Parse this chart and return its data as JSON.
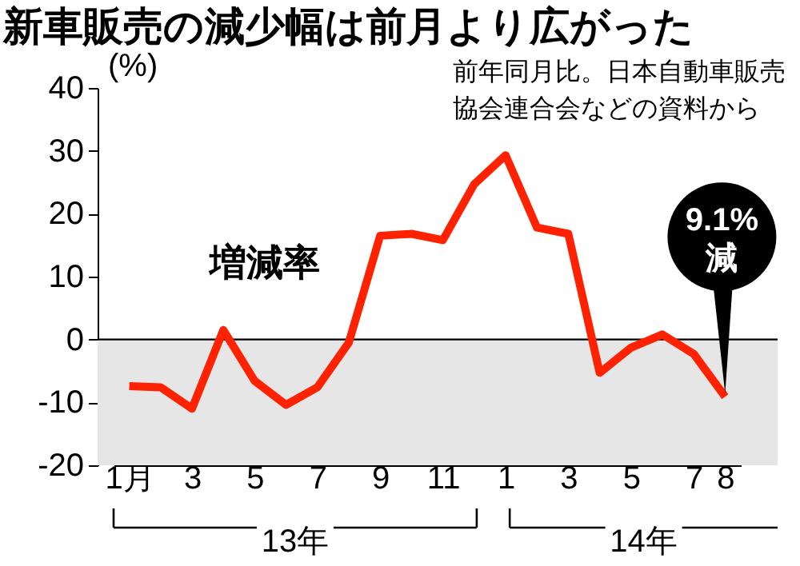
{
  "chart_data": {
    "type": "line",
    "title": "新車販売の減少幅は前月より広がった",
    "subtitle": "前年同月比。日本自動車販売協会連合会などの資料から",
    "ylabel": "(%)",
    "categories": [
      "1月",
      null,
      "3",
      null,
      "5",
      null,
      "7",
      null,
      "9",
      null,
      "11",
      null,
      "1",
      null,
      "3",
      null,
      "5",
      null,
      "7",
      "8"
    ],
    "series": [
      {
        "name": "増減率",
        "color": "#ff2200",
        "values": [
          -7.4,
          -7.6,
          -11,
          1.5,
          -6.6,
          -10.4,
          -7.6,
          -0.5,
          16.5,
          16.8,
          15.8,
          24.7,
          29.3,
          17.8,
          16.8,
          -5.3,
          -1.3,
          0.8,
          -2.3,
          -9.1
        ]
      }
    ],
    "ylim": [
      -20,
      40
    ],
    "yticks": [
      -20,
      -10,
      0,
      10,
      20,
      30,
      40
    ],
    "grid": false,
    "marker": "none",
    "line_style": "solid",
    "bands": [
      {
        "axis": "y",
        "from": -20,
        "to": 0,
        "color": "#e6e6e6"
      }
    ],
    "ref_lines": [
      {
        "axis": "y",
        "value": 0,
        "color": "#000000"
      }
    ],
    "annotations": [
      {
        "text": "9.1%減",
        "x": "8",
        "y": -9.1
      },
      "13年",
      "14年"
    ]
  }
}
